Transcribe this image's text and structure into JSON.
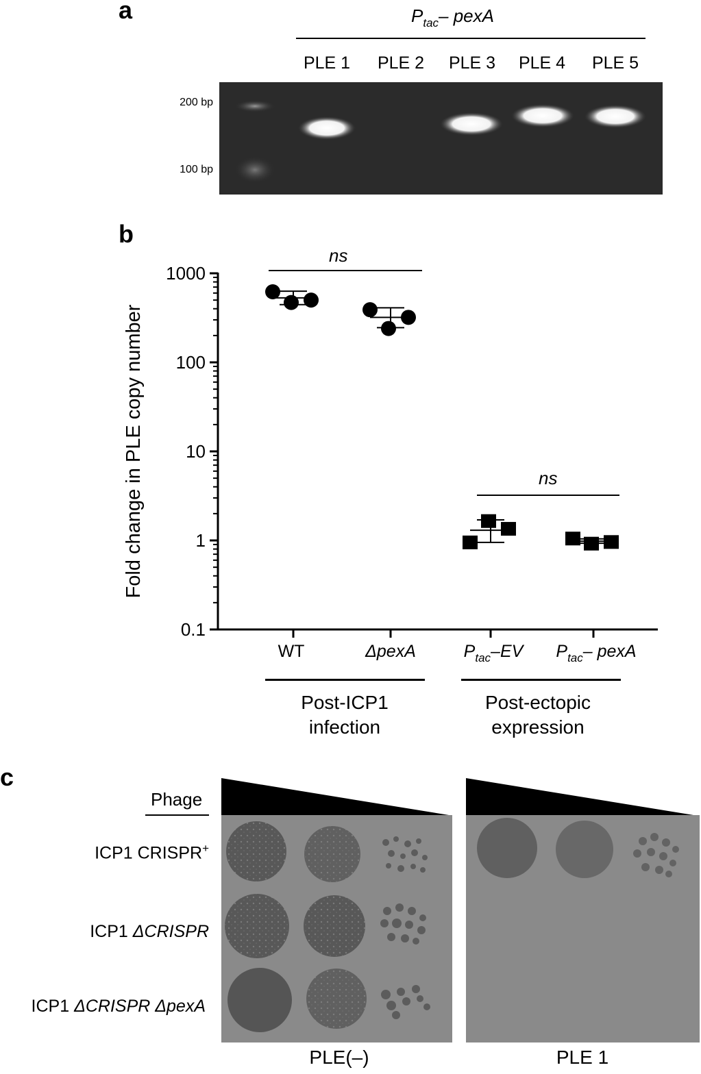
{
  "panel_a": {
    "letter": "a",
    "construct_label": {
      "p": "P",
      "sub": "tac",
      "dash": "–",
      "gene": " pexA"
    },
    "lanes": [
      "PLE 1",
      "PLE 2",
      "PLE 3",
      "PLE 4",
      "PLE 5"
    ],
    "ladder": [
      "200 bp",
      "100 bp"
    ]
  },
  "panel_b": {
    "letter": "b",
    "sig_left": "ns",
    "sig_right": "ns",
    "cat_wt": "WT",
    "cat_dpexa": "ΔpexA",
    "cat_ev": {
      "p": "P",
      "sub": "tac",
      "rest": "–EV"
    },
    "cat_pexa": {
      "p": "P",
      "sub": "tac",
      "rest": "– pexA"
    },
    "group1": [
      "Post-ICP1",
      "infection"
    ],
    "group2": [
      "Post-ectopic",
      "expression"
    ]
  },
  "chart_data": {
    "type": "scatter",
    "ylabel": "Fold change in PLE copy number",
    "yscale": "log",
    "ylim": [
      0.1,
      1000
    ],
    "yticks": [
      {
        "value": 1000,
        "label": "1000"
      },
      {
        "value": 100,
        "label": "100"
      },
      {
        "value": 10,
        "label": "10"
      },
      {
        "value": 1,
        "label": "1"
      },
      {
        "value": 0.1,
        "label": "0.1"
      }
    ],
    "categories": [
      "WT",
      "ΔpexA",
      "Ptac–EV",
      "Ptac– pexA"
    ],
    "series": [
      {
        "name": "WT",
        "marker": "circle",
        "values": [
          620,
          470,
          500
        ],
        "mean": 530,
        "sd_low": 445,
        "sd_high": 630
      },
      {
        "name": "ΔpexA",
        "marker": "circle",
        "values": [
          390,
          240,
          320
        ],
        "mean": 320,
        "sd_low": 245,
        "sd_high": 410
      },
      {
        "name": "Ptac–EV",
        "marker": "square",
        "values": [
          0.95,
          1.65,
          1.35
        ],
        "mean": 1.3,
        "sd_low": 0.95,
        "sd_high": 1.7
      },
      {
        "name": "Ptac– pexA",
        "marker": "square",
        "values": [
          1.05,
          0.92,
          0.96
        ],
        "mean": 0.98,
        "sd_low": 0.93,
        "sd_high": 1.04
      }
    ]
  },
  "panel_c": {
    "letter": "c",
    "phage_label": "Phage",
    "rows": [
      {
        "prefix": "ICP1 CRISPR",
        "sup": "+",
        "ital": ""
      },
      {
        "prefix": "ICP1 ",
        "sup": "",
        "ital": "ΔCRISPR"
      },
      {
        "prefix": "ICP1 ",
        "sup": "",
        "ital": "ΔCRISPR ΔpexA"
      }
    ],
    "plates": [
      "PLE(–)",
      "PLE 1"
    ]
  }
}
